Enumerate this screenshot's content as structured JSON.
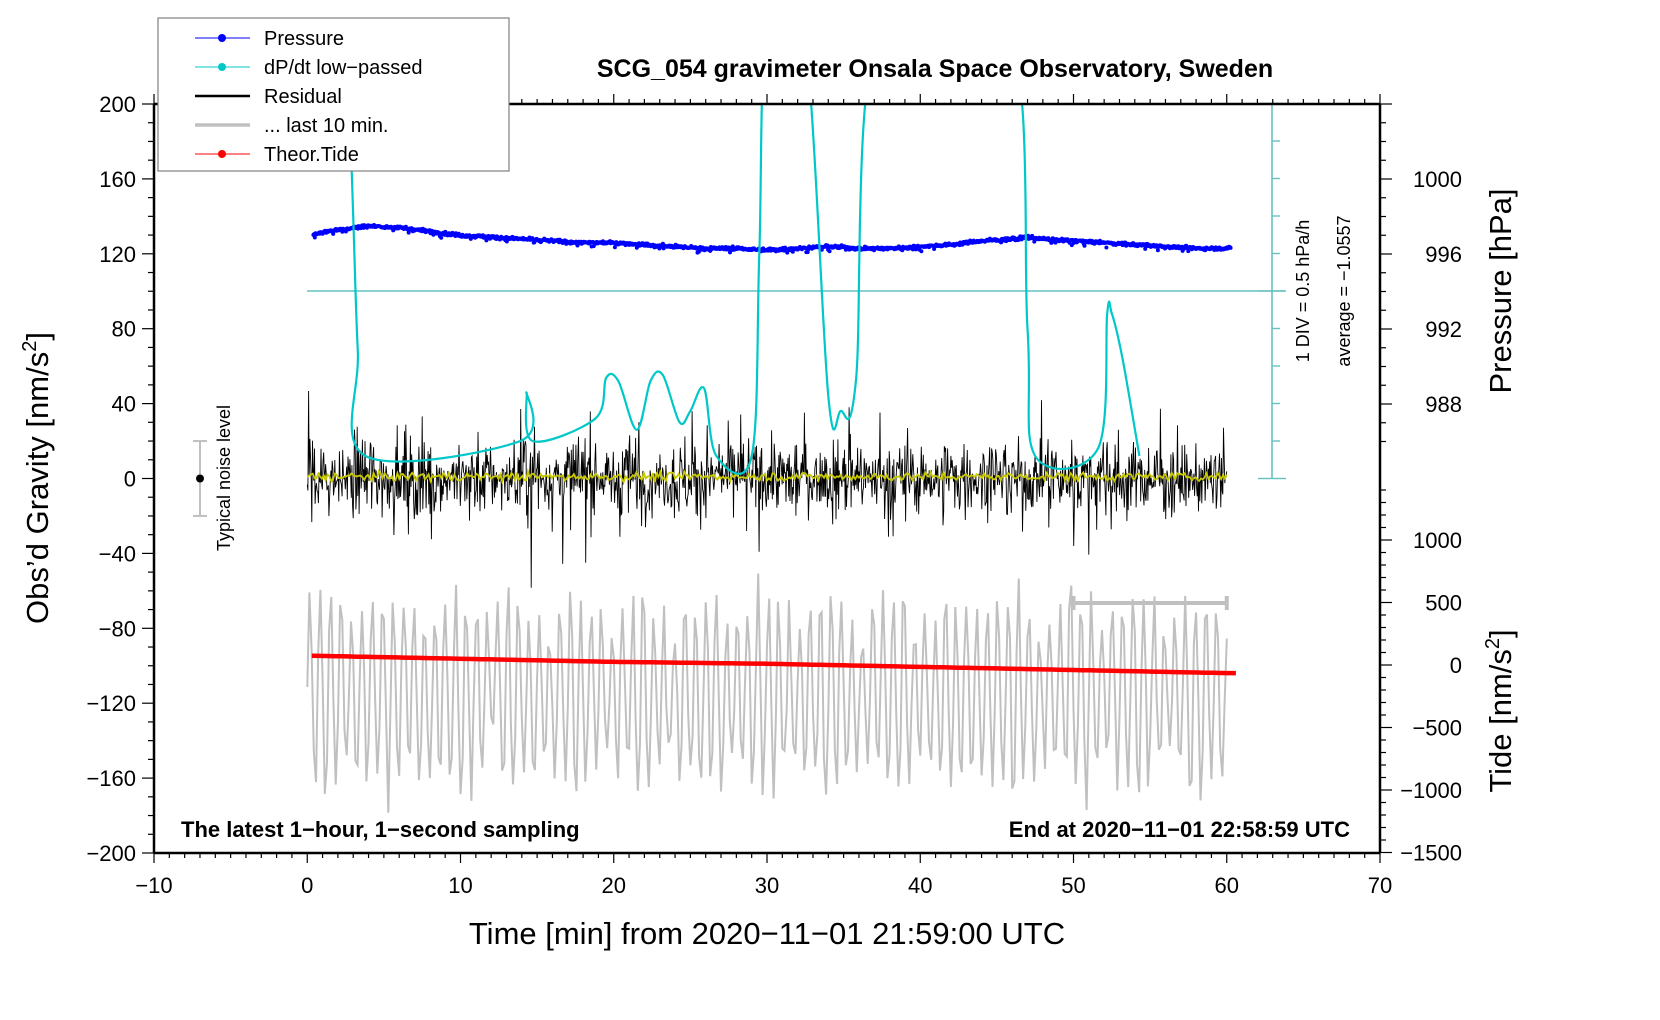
{
  "chart_data": {
    "type": "line",
    "title": "SCG_054 gravimeter Onsala Space Observatory, Sweden",
    "xlabel": "Time [min] from 2020−11−01 21:59:00 UTC",
    "ylabel_left": "Obs’d Gravity [nm/s²]",
    "ylabel_left_parts": {
      "main": "Obs’d Gravity [nm/s",
      "sup": "2",
      "end": "]"
    },
    "ylabel_right_top": "Pressure [hPa]",
    "ylabel_right_bottom": "Tide [nm/s²]",
    "ylabel_right_bottom_parts": {
      "main": "Tide [nm/s",
      "sup": "2",
      "end": "]"
    },
    "xlim": [
      -10,
      70
    ],
    "ylim": [
      -200,
      200
    ],
    "pressure_ylim_visible": [
      986,
      1004
    ],
    "tide_ylim": [
      -1500,
      1500
    ],
    "grid": false,
    "xticks": [
      -10,
      0,
      10,
      20,
      30,
      40,
      50,
      60,
      70
    ],
    "xtick_labels": [
      "−10",
      "0",
      "10",
      "20",
      "30",
      "40",
      "50",
      "60",
      "70"
    ],
    "yticks_left": [
      200,
      160,
      120,
      80,
      40,
      0,
      -40,
      -80,
      -120,
      -160,
      -200
    ],
    "ytick_labels_left": [
      "200",
      "160",
      "120",
      "80",
      "40",
      "0",
      "−40",
      "−80",
      "−120",
      "−160",
      "−200"
    ],
    "yticks_pressure": [
      1000,
      996,
      992,
      988
    ],
    "ytick_labels_pressure": [
      "1000",
      "996",
      "992",
      "988"
    ],
    "yticks_tide": [
      1000,
      500,
      0,
      -500,
      -1000,
      -1500
    ],
    "ytick_labels_tide": [
      "1000",
      "500",
      "0",
      "−500",
      "−1000",
      "−1500"
    ],
    "legend": {
      "placement": "top-left",
      "entries": [
        {
          "label": "Pressure",
          "color": "#0000ff",
          "marker": "dot"
        },
        {
          "label": "dP/dt low−passed",
          "color": "#00c8c8",
          "marker": "dot"
        },
        {
          "label": "Residual",
          "color": "#000000",
          "marker": "none"
        },
        {
          "label": "... last 10 min.",
          "color": "#c0c0c0",
          "marker": "none"
        },
        {
          "label": "Theor.Tide",
          "color": "#ff0000",
          "marker": "dot"
        }
      ]
    },
    "annotations": {
      "bottom_left": "The latest 1−hour, 1−second sampling",
      "bottom_right": "End at 2020−11−01 22:58:59 UTC",
      "dpdt_scale": "1 DIV = 0.5 hPa/h",
      "dpdt_average": "average = −1.0557",
      "noise_label": "Typical noise level",
      "noise_level_range": [
        -20,
        20
      ],
      "last10_window_min": [
        50,
        60
      ]
    },
    "series": [
      {
        "name": "Pressure",
        "axis": "pressure_hPa",
        "color": "#0000ff",
        "x": [
          0,
          2,
          4,
          6,
          8,
          10,
          12,
          14,
          16,
          18,
          20,
          22,
          24,
          26,
          28,
          30,
          32,
          34,
          36,
          38,
          40,
          42,
          44,
          46,
          47,
          48,
          50,
          52,
          54,
          56,
          58,
          60
        ],
        "y": [
          997.0,
          997.3,
          997.5,
          997.4,
          997.2,
          997.0,
          996.9,
          996.8,
          996.7,
          996.6,
          996.6,
          996.5,
          996.4,
          996.3,
          996.3,
          996.2,
          996.3,
          996.4,
          996.3,
          996.3,
          996.4,
          996.5,
          996.7,
          996.8,
          996.9,
          996.8,
          996.7,
          996.6,
          996.5,
          996.4,
          996.3,
          996.3
        ]
      },
      {
        "name": "dP/dt low-passed",
        "axis": "dpdt_hPa_per_h",
        "color": "#00c8c8",
        "x": [
          2.6,
          3.0,
          3.3,
          3.8,
          13.9,
          14.3,
          14.7,
          18.8,
          19.5,
          20.3,
          21.5,
          22.4,
          23.2,
          24.3,
          25.0,
          25.9,
          26.7,
          29.0,
          29.5,
          30.0,
          32.4,
          34.0,
          34.8,
          35.8,
          37.3,
          45.7,
          47.0,
          47.5,
          51.6,
          52.2,
          52.5,
          53.2,
          54.3
        ],
        "y": [
          3.5,
          1.0,
          -0.8,
          -2.2,
          -2.0,
          -1.35,
          -2.0,
          -1.7,
          -1.16,
          -1.2,
          -1.85,
          -1.2,
          -1.12,
          -1.75,
          -1.6,
          -1.3,
          -2.2,
          -2.2,
          0.5,
          3.5,
          3.5,
          -1.4,
          -1.6,
          -1.2,
          3.5,
          3.5,
          -0.5,
          -2.2,
          -2.1,
          -0.3,
          -0.3,
          -0.9,
          -2.2
        ]
      },
      {
        "name": "Residual",
        "axis": "gravity_nm_s2",
        "color": "#000000",
        "x_range": [
          0,
          60
        ],
        "approx_amplitude": 80,
        "y_min_approx": -78,
        "y_max_approx": 80
      },
      {
        "name": "Residual (smoothed)",
        "axis": "gravity_nm_s2",
        "color": "#c8c800",
        "x_range": [
          0,
          60
        ],
        "approx_value": 1
      },
      {
        "name": "... last 10 min.",
        "axis": "gravity_nm_s2",
        "color": "#c0c0c0",
        "x_range": [
          0,
          60
        ],
        "approx_center": -115,
        "approx_amplitude": 55
      },
      {
        "name": "Theor.Tide",
        "axis": "tide_nm_s2",
        "color": "#ff0000",
        "x": [
          0,
          10,
          20,
          30,
          40,
          50,
          60
        ],
        "y": [
          75,
          50,
          25,
          10,
          -15,
          -40,
          -65
        ]
      }
    ]
  }
}
